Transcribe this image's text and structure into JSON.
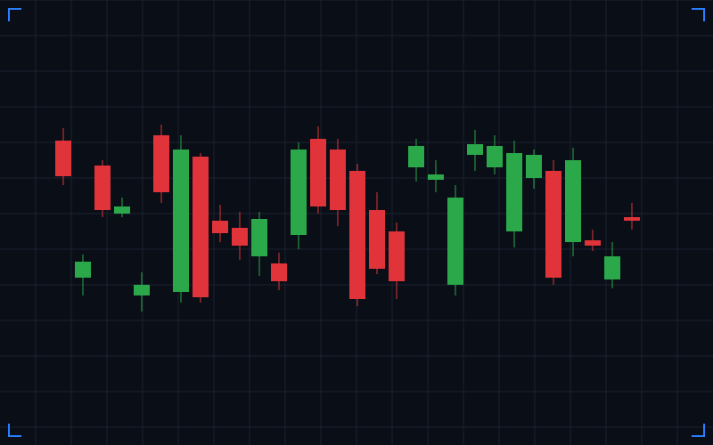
{
  "chart_data": {
    "type": "candlestick",
    "categories": [
      null,
      null,
      null,
      null,
      null,
      null,
      null,
      null,
      null,
      null,
      null,
      null,
      null,
      null,
      null,
      null,
      null,
      null,
      null,
      null,
      null,
      null,
      null,
      null,
      null,
      null,
      null,
      null,
      null,
      null
    ],
    "open": [
      80.5,
      42,
      73.5,
      60,
      37,
      82,
      38,
      76,
      58,
      56,
      48,
      46,
      54,
      81,
      78,
      72,
      61,
      55,
      73,
      69.5,
      40,
      76.5,
      73,
      55,
      70,
      72,
      52,
      52.5,
      41.5,
      59
    ],
    "high": [
      84,
      48.5,
      75,
      64.5,
      43.5,
      85,
      82,
      77,
      62.5,
      60.5,
      60.5,
      49,
      80,
      84.5,
      81,
      74,
      66,
      57.5,
      81,
      75,
      68,
      83.5,
      82,
      80.5,
      78,
      75,
      78.5,
      55.5,
      52,
      63
    ],
    "low": [
      68,
      37,
      59,
      59,
      32.5,
      63,
      35,
      35,
      52,
      47,
      42.5,
      38.5,
      50,
      60,
      56.5,
      34,
      43,
      36,
      69,
      66,
      37,
      72,
      71,
      50.5,
      67,
      40,
      48,
      49.5,
      39,
      55.5
    ],
    "close": [
      70.5,
      46.5,
      61,
      62,
      40,
      66,
      78,
      36.5,
      54.5,
      51,
      58.5,
      41,
      78,
      62,
      61,
      36,
      44.5,
      41,
      79,
      71,
      64.5,
      79.5,
      79,
      77,
      76.5,
      42,
      75,
      51,
      48,
      58
    ],
    "up_color": "#2aa84a",
    "down_color": "#e0343a",
    "ylim": [
      -5,
      120
    ],
    "yticks": [
      0,
      10,
      20,
      30,
      40,
      50,
      60,
      70,
      80,
      90,
      100,
      110,
      120
    ],
    "grid": true
  }
}
